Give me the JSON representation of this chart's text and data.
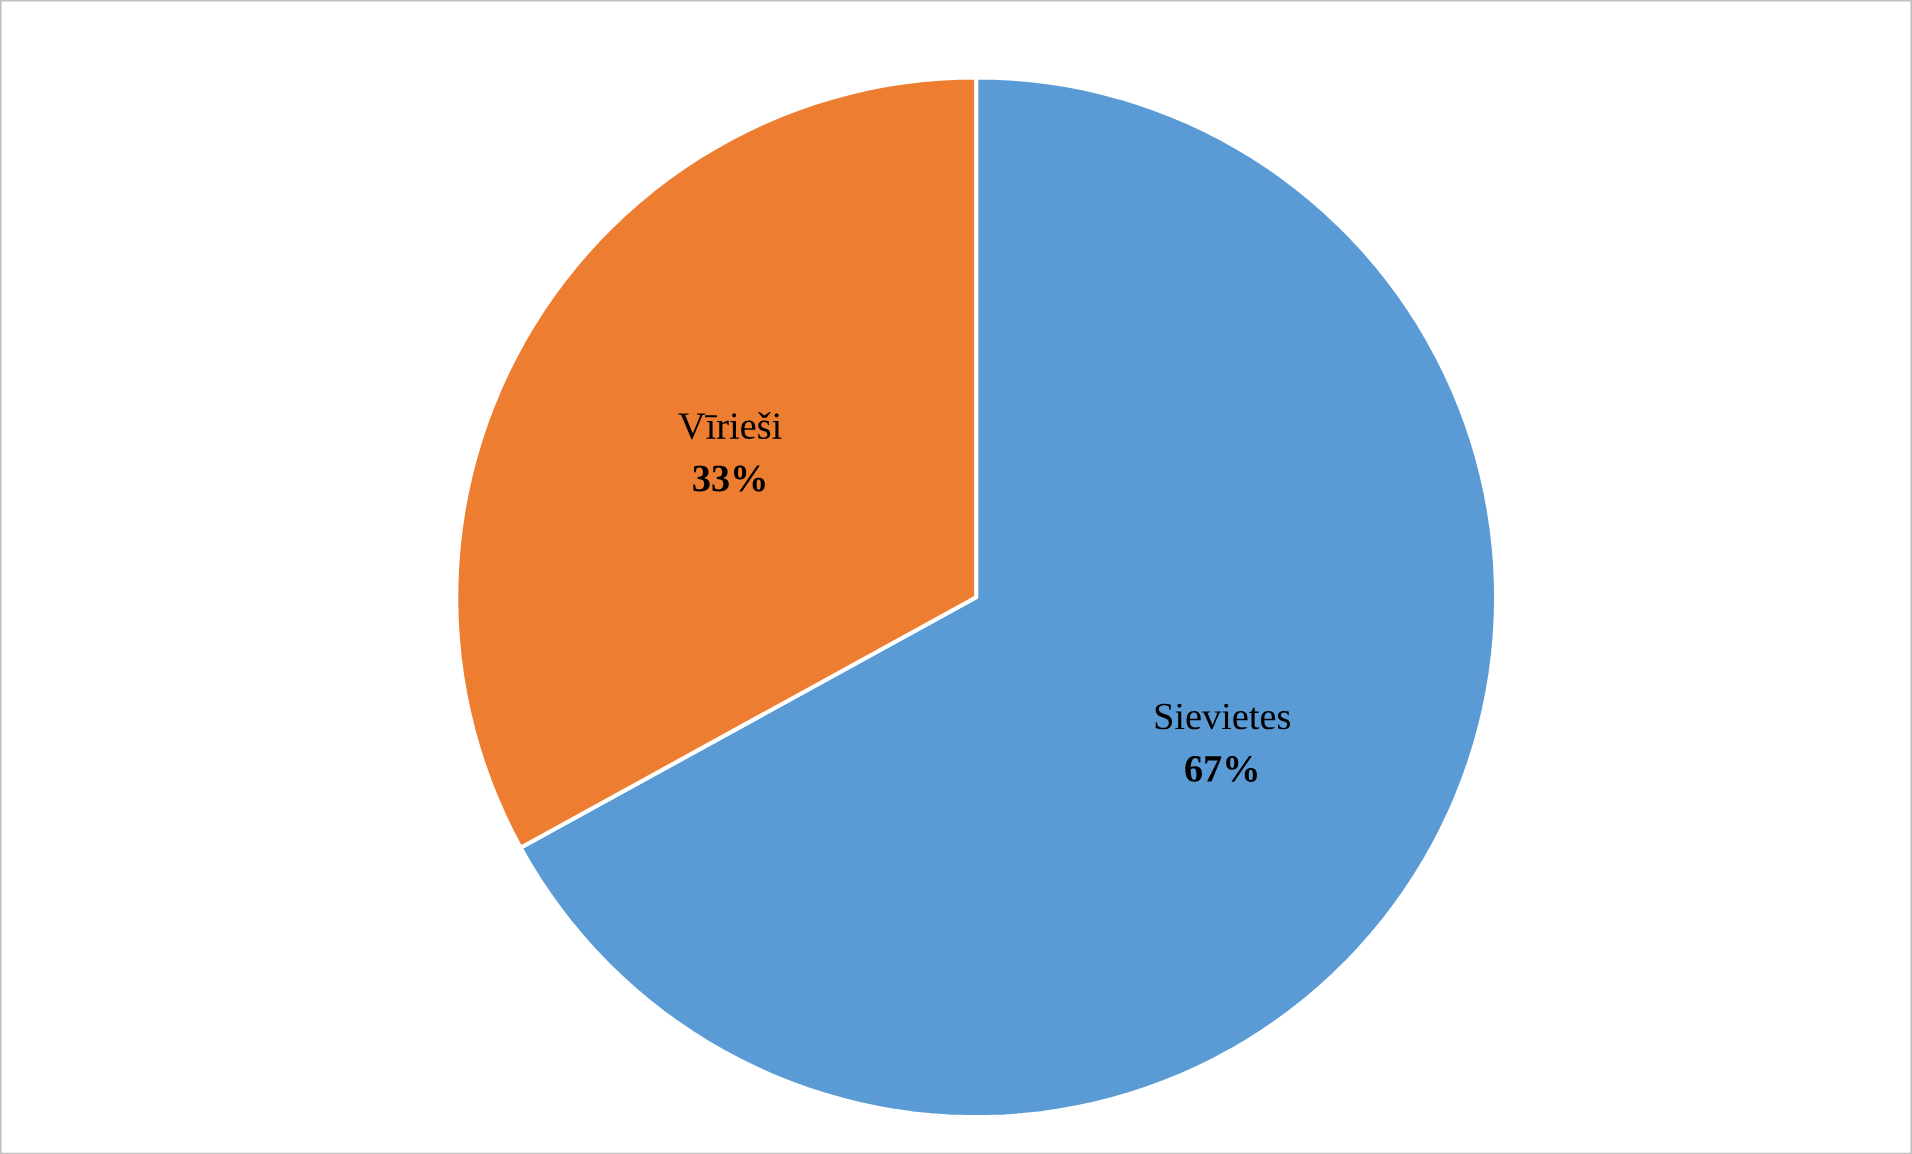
{
  "chart_data": {
    "type": "pie",
    "categories": [
      "Sievietes",
      "Vīrieši"
    ],
    "values": [
      67,
      33
    ],
    "colors": [
      "#5b9bd5",
      "#ed7d31"
    ],
    "value_labels": [
      "67%",
      "33%"
    ]
  }
}
